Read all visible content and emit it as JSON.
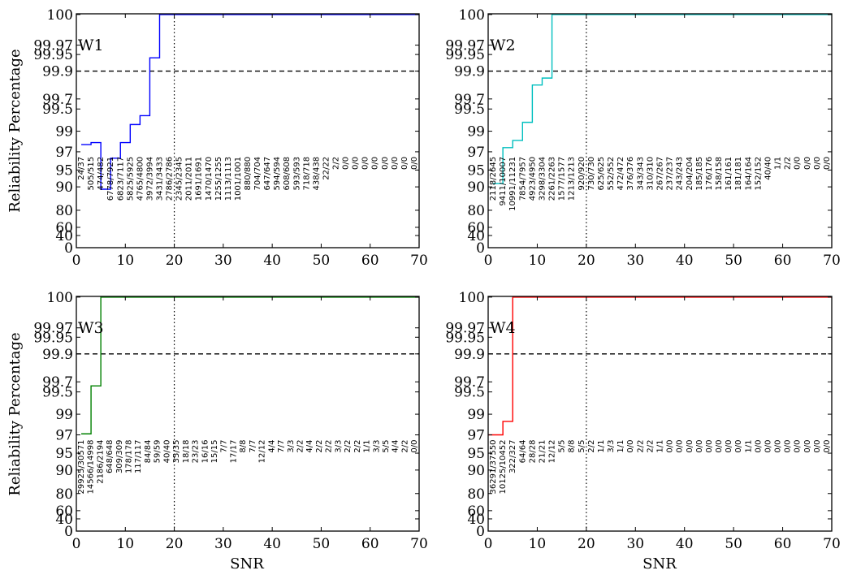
{
  "ylabel": "Reliability Percentage",
  "xlabel": "SNR",
  "chart_data": [
    {
      "type": "line",
      "panel_label": "W1",
      "color": "#0000ff",
      "xlim": [
        0,
        70
      ],
      "yscale": "reliability",
      "yticks": [
        0,
        40,
        60,
        80,
        90,
        95,
        97,
        99,
        99.5,
        99.7,
        99.9,
        99.95,
        99.97,
        100
      ],
      "xticks": [
        0,
        10,
        20,
        30,
        40,
        50,
        60,
        70
      ],
      "threshold": 99.9,
      "vline": 20,
      "steps": [
        [
          1,
          97.7
        ],
        [
          3,
          97.9
        ],
        [
          5,
          89
        ],
        [
          7,
          96.3
        ],
        [
          9,
          97.9
        ],
        [
          11,
          99.15
        ],
        [
          13,
          99.35
        ],
        [
          15,
          99.94
        ],
        [
          17,
          100
        ],
        [
          70,
          100
        ]
      ],
      "counts": [
        "24/37",
        "505/515",
        "474/482",
        "6778/7921",
        "6823/7117",
        "5825/5925",
        "4765/4800",
        "3972/3994",
        "3431/3433",
        "2786/2786",
        "2345/2345",
        "2011/2011",
        "1691/1691",
        "1470/1470",
        "1255/1255",
        "1113/1113",
        "1001/1001",
        "880/880",
        "704/704",
        "647/647",
        "594/594",
        "608/608",
        "593/593",
        "718/718",
        "438/438",
        "22/22",
        "2/2",
        "0/0",
        "0/0",
        "0/0",
        "0/0",
        "0/0",
        "0/0",
        "0/0",
        "0/0"
      ]
    },
    {
      "type": "line",
      "panel_label": "W2",
      "color": "#00bfbf",
      "xlim": [
        0,
        70
      ],
      "yscale": "reliability",
      "yticks": [
        0,
        40,
        60,
        80,
        90,
        95,
        97,
        99,
        99.5,
        99.7,
        99.9,
        99.95,
        99.97,
        100
      ],
      "xticks": [
        0,
        10,
        20,
        30,
        40,
        50,
        60,
        70
      ],
      "threshold": 99.9,
      "vline": 20,
      "steps": [
        [
          1,
          91
        ],
        [
          3,
          97.4
        ],
        [
          5,
          98.1
        ],
        [
          7,
          99.2
        ],
        [
          9,
          99.8
        ],
        [
          11,
          99.85
        ],
        [
          13,
          100
        ],
        [
          70,
          100
        ]
      ],
      "counts": [
        "2118/2645",
        "9411/10007",
        "10991/11231",
        "7854/7957",
        "4923/4950",
        "3298/3304",
        "2261/2263",
        "1577/1577",
        "1213/1213",
        "920/920",
        "730/730",
        "625/625",
        "552/552",
        "472/472",
        "376/376",
        "343/343",
        "310/310",
        "267/267",
        "237/237",
        "243/243",
        "204/204",
        "185/185",
        "176/176",
        "158/158",
        "161/161",
        "181/181",
        "164/164",
        "152/152",
        "40/40",
        "1/1",
        "2/2",
        "0/0",
        "0/0",
        "0/0",
        "0/0"
      ]
    },
    {
      "type": "line",
      "panel_label": "W3",
      "color": "#008000",
      "xlim": [
        0,
        70
      ],
      "yscale": "reliability",
      "yticks": [
        0,
        40,
        60,
        80,
        90,
        95,
        97,
        99,
        99.5,
        99.7,
        99.9,
        99.95,
        99.97,
        100
      ],
      "xticks": [
        0,
        10,
        20,
        30,
        40,
        50,
        60,
        70
      ],
      "threshold": 99.9,
      "vline": 20,
      "steps": [
        [
          1,
          97.1
        ],
        [
          3,
          99.62
        ],
        [
          5,
          100
        ],
        [
          70,
          100
        ]
      ],
      "counts": [
        "29925/30571",
        "14566/14998",
        "2186/2194",
        "648/648",
        "309/309",
        "178/178",
        "117/117",
        "84/84",
        "59/59",
        "40/40",
        "35/35",
        "18/18",
        "23/23",
        "16/16",
        "15/15",
        "7/7",
        "17/17",
        "8/8",
        "7/7",
        "12/12",
        "4/4",
        "7/7",
        "3/3",
        "2/2",
        "4/4",
        "2/2",
        "2/2",
        "3/3",
        "2/2",
        "2/2",
        "1/1",
        "3/3",
        "5/5",
        "4/4",
        "2/2",
        "0/0"
      ]
    },
    {
      "type": "line",
      "panel_label": "W4",
      "color": "#ff0000",
      "xlim": [
        0,
        70
      ],
      "yscale": "reliability",
      "yticks": [
        0,
        40,
        60,
        80,
        90,
        95,
        97,
        99,
        99.5,
        99.7,
        99.9,
        99.95,
        99.97,
        100
      ],
      "xticks": [
        0,
        10,
        20,
        30,
        40,
        50,
        60,
        70
      ],
      "threshold": 99.9,
      "vline": 20,
      "steps": [
        [
          0,
          97
        ],
        [
          3,
          98.3
        ],
        [
          5,
          100
        ],
        [
          70,
          100
        ]
      ],
      "counts": [
        "36291/37550",
        "10125/10452",
        "322/327",
        "64/64",
        "28/28",
        "21/21",
        "12/12",
        "5/5",
        "8/8",
        "5/5",
        "2/2",
        "1/1",
        "3/3",
        "1/1",
        "0/0",
        "2/2",
        "2/2",
        "1/1",
        "0/0",
        "0/0",
        "0/0",
        "0/0",
        "0/0",
        "0/0",
        "0/0",
        "0/0",
        "1/1",
        "0/0",
        "0/0",
        "0/0",
        "0/0",
        "0/0",
        "0/0",
        "0/0",
        "0/0"
      ]
    }
  ]
}
